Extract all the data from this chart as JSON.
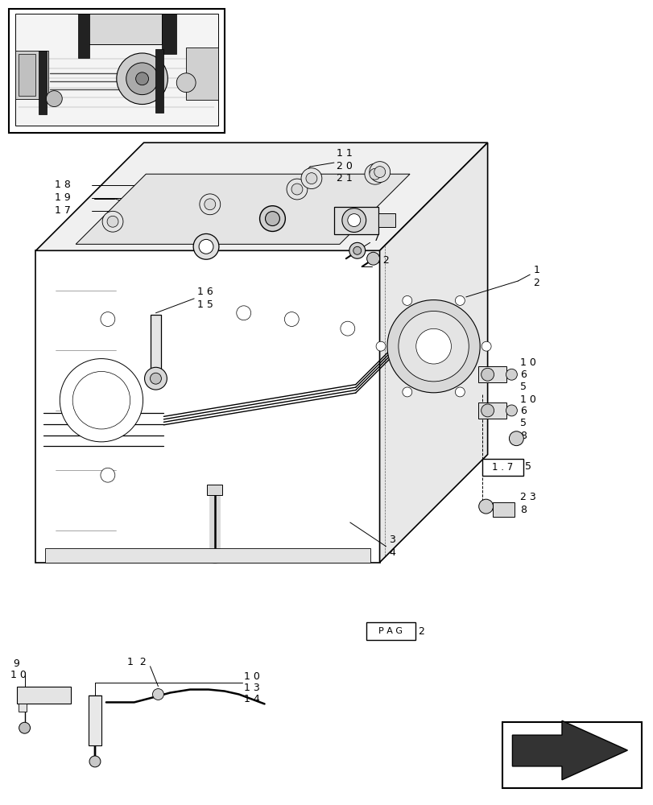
{
  "bg_color": "#ffffff",
  "line_color": "#000000",
  "fig_width": 8.12,
  "fig_height": 10.0
}
